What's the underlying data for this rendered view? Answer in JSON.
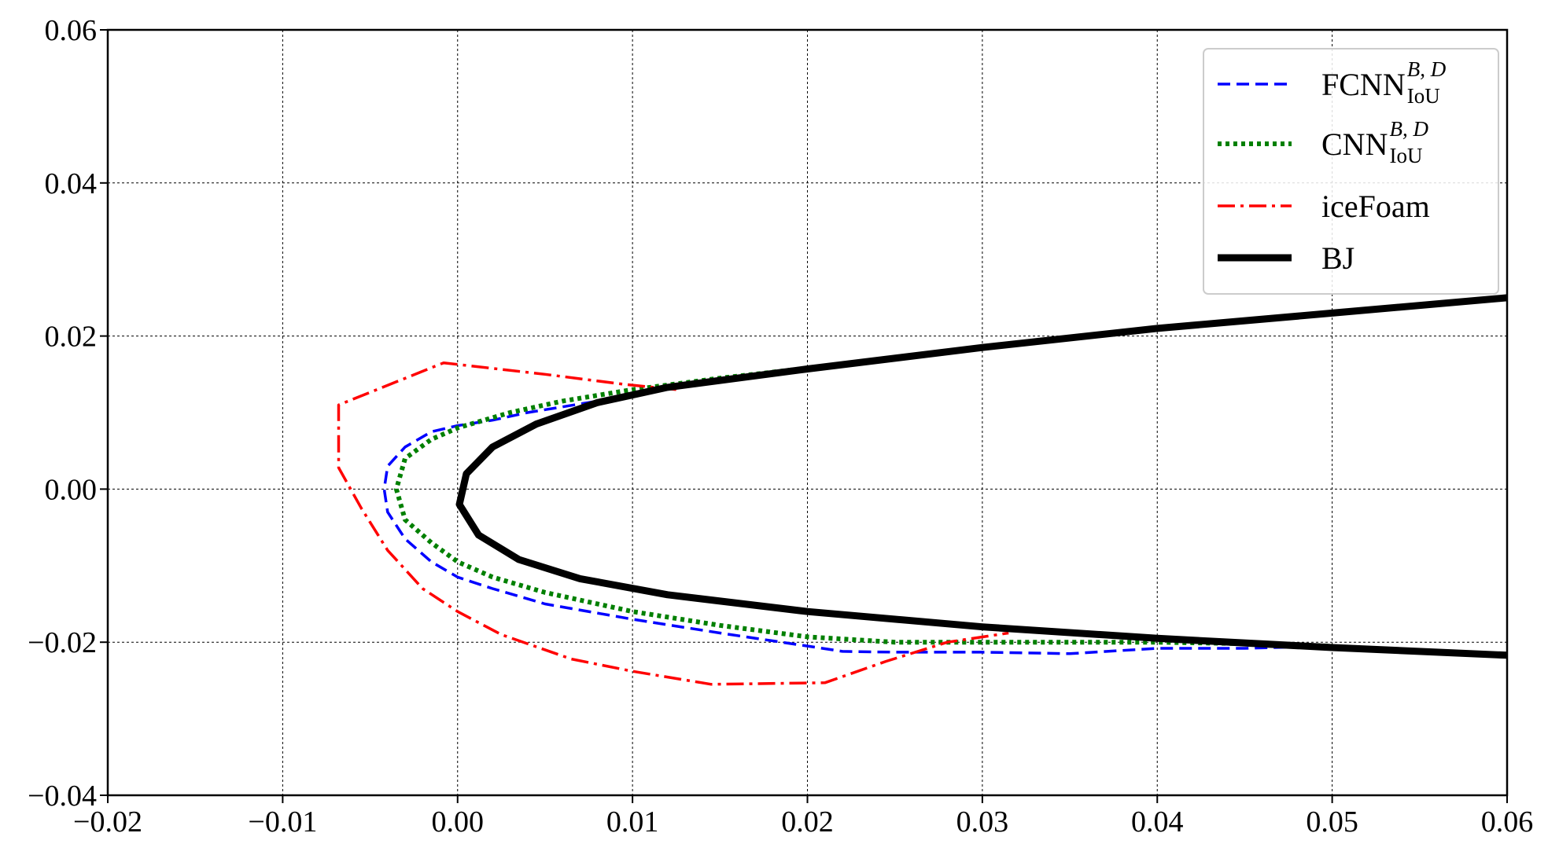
{
  "chart_data": {
    "type": "line",
    "title": "",
    "xlabel": "",
    "ylabel": "",
    "xlim": [
      -0.02,
      0.06
    ],
    "ylim": [
      -0.04,
      0.06
    ],
    "grid": true,
    "legend_position": "top-right",
    "x_ticks": [
      {
        "value": -0.02,
        "label": "−0.02"
      },
      {
        "value": -0.01,
        "label": "−0.01"
      },
      {
        "value": 0.0,
        "label": "0.00"
      },
      {
        "value": 0.01,
        "label": "0.01"
      },
      {
        "value": 0.02,
        "label": "0.02"
      },
      {
        "value": 0.03,
        "label": "0.03"
      },
      {
        "value": 0.04,
        "label": "0.04"
      },
      {
        "value": 0.05,
        "label": "0.05"
      },
      {
        "value": 0.06,
        "label": "0.06"
      }
    ],
    "y_ticks": [
      {
        "value": -0.04,
        "label": "−0.04"
      },
      {
        "value": -0.02,
        "label": "−0.02"
      },
      {
        "value": 0.0,
        "label": "0.00"
      },
      {
        "value": 0.02,
        "label": "0.02"
      },
      {
        "value": 0.04,
        "label": "0.04"
      },
      {
        "value": 0.06,
        "label": "0.06"
      }
    ],
    "series": [
      {
        "key": "fcnn",
        "name": "FCNN",
        "name_sup": "B, D",
        "name_sub": "IoU",
        "color": "#0000ff",
        "style": "dashed",
        "points": [
          [
            0.012,
            0.0135
          ],
          [
            0.008,
            0.0115
          ],
          [
            0.004,
            0.01
          ],
          [
            0.002,
            0.009
          ],
          [
            0.0,
            0.0083
          ],
          [
            -0.0015,
            0.0075
          ],
          [
            -0.003,
            0.0055
          ],
          [
            -0.004,
            0.003
          ],
          [
            -0.0042,
            0.0
          ],
          [
            -0.004,
            -0.003
          ],
          [
            -0.003,
            -0.0065
          ],
          [
            -0.0015,
            -0.0095
          ],
          [
            0.0,
            -0.0115
          ],
          [
            0.002,
            -0.013
          ],
          [
            0.005,
            -0.015
          ],
          [
            0.01,
            -0.017
          ],
          [
            0.015,
            -0.0188
          ],
          [
            0.02,
            -0.0205
          ],
          [
            0.022,
            -0.0212
          ],
          [
            0.025,
            -0.0213
          ],
          [
            0.03,
            -0.0213
          ],
          [
            0.035,
            -0.0215
          ],
          [
            0.04,
            -0.0208
          ],
          [
            0.045,
            -0.0208
          ],
          [
            0.05,
            -0.0205
          ]
        ]
      },
      {
        "key": "cnn",
        "name": "CNN",
        "name_sup": "B, D",
        "name_sub": "IoU",
        "color": "#008000",
        "style": "dotted",
        "points": [
          [
            0.02,
            0.0158
          ],
          [
            0.015,
            0.0145
          ],
          [
            0.01,
            0.013
          ],
          [
            0.006,
            0.0115
          ],
          [
            0.003,
            0.01
          ],
          [
            0.0,
            0.008
          ],
          [
            -0.0015,
            0.0065
          ],
          [
            -0.003,
            0.004
          ],
          [
            -0.0035,
            0.0
          ],
          [
            -0.003,
            -0.004
          ],
          [
            -0.0015,
            -0.007
          ],
          [
            0.0,
            -0.0095
          ],
          [
            0.002,
            -0.0115
          ],
          [
            0.005,
            -0.0135
          ],
          [
            0.01,
            -0.016
          ],
          [
            0.015,
            -0.0178
          ],
          [
            0.02,
            -0.0193
          ],
          [
            0.025,
            -0.02
          ],
          [
            0.03,
            -0.02
          ],
          [
            0.035,
            -0.02
          ],
          [
            0.04,
            -0.02
          ],
          [
            0.045,
            -0.0202
          ],
          [
            0.05,
            -0.0205
          ]
        ]
      },
      {
        "key": "icefoam",
        "name": "iceFoam",
        "name_sup": "",
        "name_sub": "",
        "color": "#ff0000",
        "style": "dashdot",
        "points": [
          [
            0.0125,
            0.013
          ],
          [
            0.0095,
            0.0137
          ],
          [
            0.005,
            0.015
          ],
          [
            -0.0008,
            0.0165
          ],
          [
            -0.0068,
            0.011
          ],
          [
            -0.0068,
            0.0028
          ],
          [
            -0.0055,
            -0.0025
          ],
          [
            -0.004,
            -0.008
          ],
          [
            -0.002,
            -0.013
          ],
          [
            0.0,
            -0.016
          ],
          [
            0.0025,
            -0.019
          ],
          [
            0.0065,
            -0.0222
          ],
          [
            0.01,
            -0.0238
          ],
          [
            0.0145,
            -0.0255
          ],
          [
            0.021,
            -0.0253
          ],
          [
            0.0245,
            -0.0225
          ],
          [
            0.028,
            -0.02
          ],
          [
            0.0315,
            -0.0188
          ]
        ]
      },
      {
        "key": "bj",
        "name": "BJ",
        "name_sup": "",
        "name_sub": "",
        "color": "#000000",
        "style": "solid",
        "points": [
          [
            0.06,
            0.025
          ],
          [
            0.05,
            0.023
          ],
          [
            0.04,
            0.021
          ],
          [
            0.03,
            0.0185
          ],
          [
            0.02,
            0.0157
          ],
          [
            0.012,
            0.0133
          ],
          [
            0.008,
            0.0113
          ],
          [
            0.0045,
            0.0085
          ],
          [
            0.002,
            0.0055
          ],
          [
            0.0005,
            0.002
          ],
          [
            0.0001,
            -0.002
          ],
          [
            0.0012,
            -0.006
          ],
          [
            0.0035,
            -0.0092
          ],
          [
            0.007,
            -0.0117
          ],
          [
            0.012,
            -0.0138
          ],
          [
            0.02,
            -0.016
          ],
          [
            0.03,
            -0.018
          ],
          [
            0.04,
            -0.0195
          ],
          [
            0.05,
            -0.0207
          ],
          [
            0.06,
            -0.0217
          ]
        ]
      }
    ]
  }
}
